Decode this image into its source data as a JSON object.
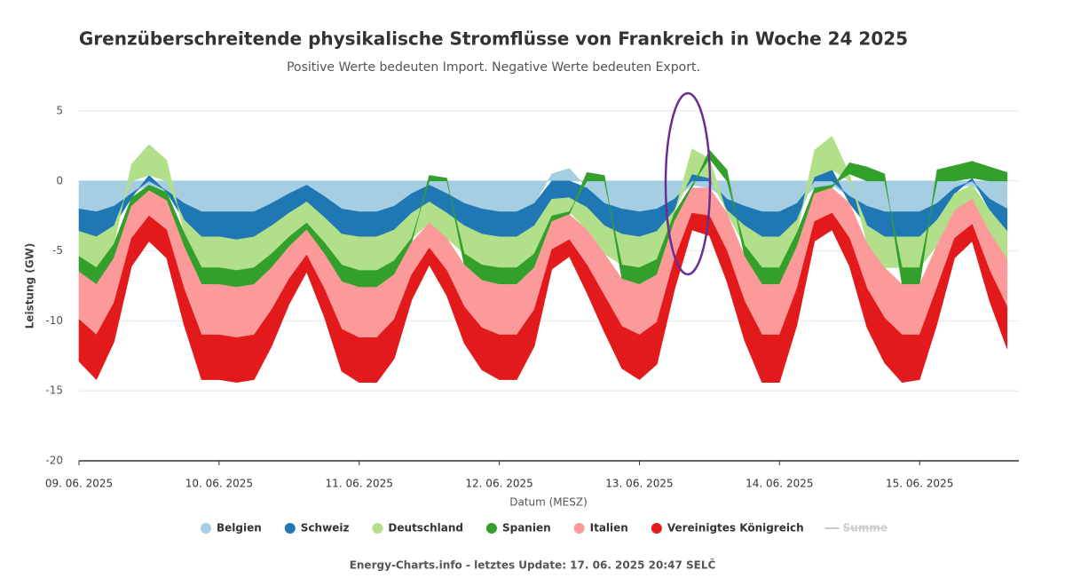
{
  "chart_data": {
    "type": "stacked_area",
    "title": "Grenzüberschreitende physikalische Stromflüsse von Frankreich in Woche 24 2025",
    "subtitle": "Positive Werte bedeuten Import. Negative Werte bedeuten Export.",
    "x_label": "Datum (MESZ)",
    "y_label": "Leistung (GW)",
    "footer": "Energy-Charts.info - letztes Update: 17. 06. 2025 20:47 SELČ",
    "x": [
      0,
      3,
      6,
      9,
      12,
      15,
      18,
      21,
      24,
      27,
      30,
      33,
      36,
      39,
      42,
      45,
      48,
      51,
      54,
      57,
      60,
      63,
      66,
      69,
      72,
      75,
      78,
      81,
      84,
      87,
      90,
      93,
      96,
      99,
      102,
      105,
      108,
      111,
      114,
      117,
      120,
      123,
      126,
      129,
      132,
      135,
      138,
      141,
      144,
      147,
      150,
      153,
      156,
      159
    ],
    "xlim": [
      0,
      161
    ],
    "xticks": [
      {
        "value": 0,
        "label": "09. 06. 2025"
      },
      {
        "value": 24,
        "label": "10. 06. 2025"
      },
      {
        "value": 48,
        "label": "11. 06. 2025"
      },
      {
        "value": 72,
        "label": "12. 06. 2025"
      },
      {
        "value": 96,
        "label": "13. 06. 2025"
      },
      {
        "value": 120,
        "label": "14. 06. 2025"
      },
      {
        "value": 144,
        "label": "15. 06. 2025"
      }
    ],
    "ylim": [
      -20,
      5
    ],
    "yticks": [
      -20,
      -15,
      -10,
      -5,
      0,
      5
    ],
    "grid": true,
    "series": [
      {
        "name": "Belgien",
        "color": "#a6cee3",
        "values": [
          -2.0,
          -2.2,
          -1.8,
          -0.9,
          -0.3,
          -0.7,
          -1.6,
          -2.2,
          -2.2,
          -2.2,
          -2.2,
          -1.6,
          -0.9,
          -0.3,
          -1.1,
          -2.0,
          -2.2,
          -2.2,
          -1.8,
          -0.9,
          -0.3,
          -0.9,
          -1.6,
          -2.0,
          -2.2,
          -2.2,
          -1.6,
          0.5,
          0.9,
          -0.5,
          -1.6,
          -2.0,
          -2.2,
          -2.0,
          -1.3,
          -0.3,
          -0.5,
          -1.3,
          -1.8,
          -2.2,
          -2.2,
          -1.6,
          -0.5,
          -0.3,
          -1.1,
          -1.8,
          -2.2,
          -2.2,
          -2.2,
          -1.6,
          -0.5,
          -0.3,
          -1.3,
          -2.0
        ]
      },
      {
        "name": "Schweiz",
        "color": "#1f78b4",
        "values": [
          -1.6,
          -1.8,
          -1.4,
          -0.3,
          0.4,
          -0.1,
          -1.2,
          -1.8,
          -1.8,
          -2.0,
          -1.8,
          -1.6,
          -1.4,
          -1.2,
          -1.5,
          -1.8,
          -1.8,
          -1.8,
          -1.7,
          -1.4,
          -1.2,
          -1.4,
          -1.6,
          -1.8,
          -1.8,
          -1.8,
          -1.6,
          -1.3,
          -1.2,
          -1.4,
          -1.6,
          -1.8,
          -1.8,
          -1.6,
          -0.8,
          0.5,
          0.2,
          -0.8,
          -1.4,
          -1.8,
          -1.8,
          -1.2,
          0.3,
          0.8,
          -0.5,
          -1.4,
          -1.8,
          -1.8,
          -1.8,
          -1.2,
          -0.4,
          0.2,
          -0.8,
          -1.6
        ]
      },
      {
        "name": "Deutschland",
        "color": "#b2df8a",
        "values": [
          -1.8,
          -2.2,
          -1.3,
          1.2,
          2.2,
          1.5,
          -0.9,
          -2.2,
          -2.2,
          -2.2,
          -2.2,
          -2.0,
          -1.7,
          -1.5,
          -1.8,
          -2.2,
          -2.4,
          -2.4,
          -2.2,
          -1.8,
          -1.5,
          -1.8,
          -2.0,
          -2.2,
          -2.2,
          -2.2,
          -2.0,
          -1.2,
          -1.0,
          -1.6,
          -2.0,
          -2.2,
          -2.2,
          -2.0,
          -0.2,
          1.8,
          1.4,
          -0.2,
          -1.4,
          -2.2,
          -2.2,
          -0.9,
          1.9,
          2.4,
          0.5,
          -1.3,
          -2.2,
          -2.2,
          -2.2,
          -1.8,
          -1.2,
          -1.0,
          -1.6,
          -2.0
        ]
      },
      {
        "name": "Spanien",
        "color": "#33a02c",
        "values": [
          -1.1,
          -1.2,
          -1.0,
          -0.6,
          -0.4,
          -0.6,
          -1.0,
          -1.2,
          -1.2,
          -1.2,
          -1.2,
          -1.0,
          -0.7,
          -0.5,
          -0.8,
          -1.2,
          -1.2,
          -1.2,
          -1.0,
          -0.3,
          0.4,
          0.2,
          -0.8,
          -1.1,
          -1.2,
          -1.2,
          -1.0,
          -0.4,
          -0.2,
          0.6,
          0.4,
          -1.0,
          -1.2,
          -1.1,
          -0.6,
          -0.2,
          0.6,
          0.8,
          -0.8,
          -1.2,
          -1.2,
          -1.0,
          -0.4,
          -0.2,
          0.8,
          1.0,
          0.5,
          -1.2,
          -1.2,
          0.8,
          1.1,
          1.2,
          1.0,
          0.6
        ]
      },
      {
        "name": "Italien",
        "color": "#fb9a99",
        "values": [
          -3.4,
          -3.6,
          -3.2,
          -2.3,
          -1.8,
          -2.1,
          -3.0,
          -3.6,
          -3.6,
          -3.6,
          -3.6,
          -3.0,
          -2.3,
          -1.8,
          -2.5,
          -3.4,
          -3.6,
          -3.6,
          -3.2,
          -2.3,
          -1.8,
          -2.3,
          -3.0,
          -3.4,
          -3.6,
          -3.6,
          -3.0,
          -2.0,
          -1.8,
          -2.5,
          -3.0,
          -3.4,
          -3.6,
          -3.4,
          -2.7,
          -1.8,
          -2.0,
          -2.7,
          -3.2,
          -3.6,
          -3.6,
          -3.0,
          -2.0,
          -1.8,
          -2.5,
          -3.2,
          -3.6,
          -3.6,
          -3.6,
          -3.0,
          -2.0,
          -1.8,
          -2.7,
          -3.4
        ]
      },
      {
        "name": "Vereinigtes Königreich",
        "color": "#e31a1c",
        "values": [
          -3.0,
          -3.2,
          -2.8,
          -2.0,
          -1.8,
          -2.0,
          -2.6,
          -3.2,
          -3.2,
          -3.2,
          -3.2,
          -2.6,
          -1.8,
          -1.2,
          -2.0,
          -3.0,
          -3.2,
          -3.2,
          -2.8,
          -1.8,
          -1.2,
          -1.8,
          -2.6,
          -3.0,
          -3.2,
          -3.2,
          -2.6,
          -1.4,
          -1.2,
          -2.0,
          -2.6,
          -3.0,
          -3.2,
          -3.0,
          -2.2,
          -1.2,
          -1.4,
          -2.2,
          -2.8,
          -3.4,
          -3.4,
          -2.6,
          -1.4,
          -1.2,
          -2.0,
          -2.8,
          -3.2,
          -3.4,
          -3.2,
          -2.6,
          -1.4,
          -1.2,
          -2.2,
          -3.0
        ]
      }
    ],
    "hidden_legend_items": [
      {
        "name": "Summe",
        "color": "#cccccc"
      }
    ]
  }
}
